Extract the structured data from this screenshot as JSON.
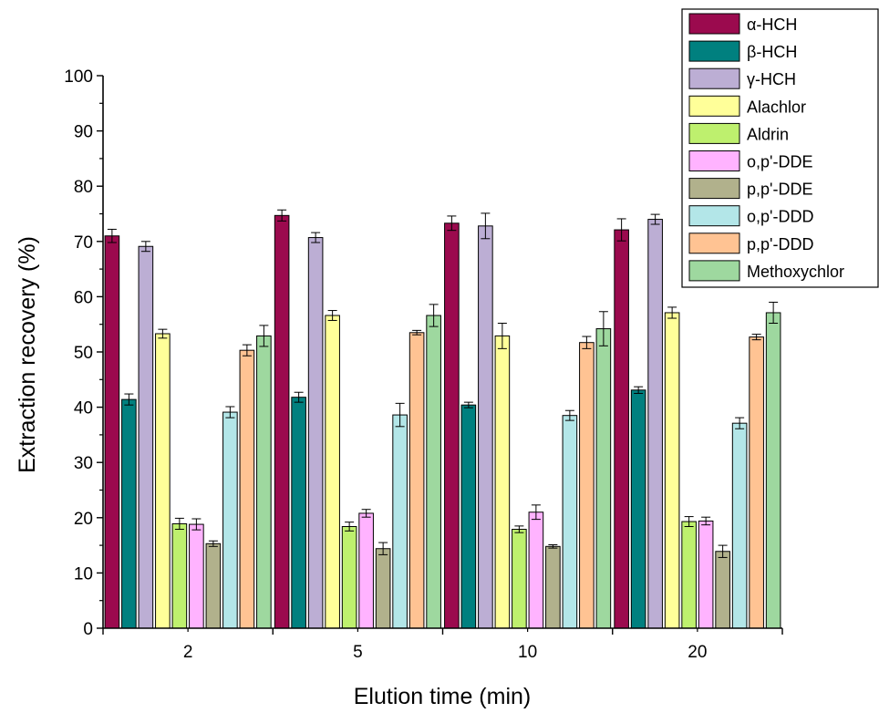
{
  "chart_data": {
    "type": "bar",
    "title": "",
    "xlabel": "Elution time (min)",
    "ylabel": "Extraction recovery (%)",
    "ylim": [
      0,
      100
    ],
    "yticks": [
      "0",
      "10",
      "20",
      "30",
      "40",
      "50",
      "60",
      "70",
      "80",
      "90",
      "100"
    ],
    "categories": [
      "2",
      "5",
      "10",
      "20"
    ],
    "legend_position": "top-right",
    "error_bars": true,
    "series": [
      {
        "name": "α-HCH",
        "color": "#9b0a4e",
        "values": [
          71.0,
          74.7,
          73.3,
          72.1
        ],
        "errors": [
          1.2,
          1.0,
          1.3,
          2.0
        ]
      },
      {
        "name": "β-HCH",
        "color": "#00807f",
        "values": [
          41.4,
          41.8,
          40.4,
          43.1
        ],
        "errors": [
          1.0,
          0.9,
          0.5,
          0.6
        ]
      },
      {
        "name": "γ-HCH",
        "color": "#bcaed4",
        "values": [
          69.1,
          70.7,
          72.8,
          74.0
        ],
        "errors": [
          0.9,
          0.9,
          2.3,
          0.9
        ]
      },
      {
        "name": "Alachlor",
        "color": "#ffff99",
        "values": [
          53.3,
          56.6,
          52.9,
          57.1
        ],
        "errors": [
          0.8,
          0.9,
          2.3,
          1.0
        ]
      },
      {
        "name": "Aldrin",
        "color": "#bef06e",
        "values": [
          18.9,
          18.4,
          17.9,
          19.3
        ],
        "errors": [
          1.0,
          0.8,
          0.6,
          0.9
        ]
      },
      {
        "name": "o,p'-DDE",
        "color": "#ffb3ff",
        "values": [
          18.8,
          20.8,
          21.0,
          19.4
        ],
        "errors": [
          1.0,
          0.7,
          1.3,
          0.7
        ]
      },
      {
        "name": "p,p'-DDE",
        "color": "#b1b18c",
        "values": [
          15.3,
          14.4,
          14.8,
          13.9
        ],
        "errors": [
          0.5,
          1.1,
          0.3,
          1.1
        ]
      },
      {
        "name": "o,p'-DDD",
        "color": "#b3e6e8",
        "values": [
          39.1,
          38.6,
          38.5,
          37.1
        ],
        "errors": [
          1.0,
          2.1,
          0.9,
          1.0
        ]
      },
      {
        "name": "p,p'-DDD",
        "color": "#ffc393",
        "values": [
          50.3,
          53.5,
          51.7,
          52.7
        ],
        "errors": [
          1.0,
          0.4,
          1.1,
          0.5
        ]
      },
      {
        "name": "Methoxychlor",
        "color": "#9ed89f",
        "values": [
          52.9,
          56.6,
          54.2,
          57.1
        ],
        "errors": [
          1.9,
          2.0,
          3.1,
          1.9
        ]
      }
    ]
  }
}
